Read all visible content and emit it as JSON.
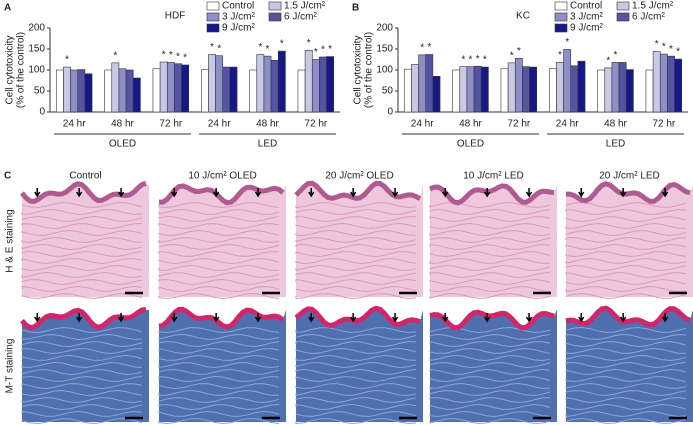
{
  "chart_data": [
    {
      "type": "bar",
      "panel": "A",
      "title": "HDF",
      "y_label": [
        "Cell cytotoxicity",
        "(% of the control)"
      ],
      "groups": [
        {
          "name": "OLED",
          "categories": [
            "24 hr",
            "48 hr",
            "72 hr"
          ]
        },
        {
          "name": "LED",
          "categories": [
            "24 hr",
            "48 hr",
            "72 hr"
          ]
        }
      ],
      "ylim": [
        0,
        200
      ],
      "yticks": [
        0,
        50,
        100,
        150,
        200
      ],
      "series": [
        {
          "name": "Control",
          "color": "#ffffff",
          "values": [
            100,
            100,
            103,
            101,
            100,
            100
          ]
        },
        {
          "name": "1.5 J/cm²",
          "color": "#c9c9e6",
          "values": [
            107,
            117,
            119,
            137,
            137,
            147
          ]
        },
        {
          "name": "3 J/cm²",
          "color": "#8e8ec9",
          "values": [
            100,
            103,
            118,
            134,
            133,
            125
          ]
        },
        {
          "name": "6 J/cm²",
          "color": "#5454a3",
          "values": [
            101,
            100,
            115,
            107,
            123,
            131
          ]
        },
        {
          "name": "9 J/cm²",
          "color": "#16188a",
          "values": [
            91,
            81,
            112,
            107,
            145,
            132
          ]
        }
      ],
      "annotations": [
        {
          "text": "*",
          "series": 1,
          "category": 0
        },
        {
          "text": "*",
          "series": 1,
          "category": 1
        },
        {
          "text": "*",
          "series": 1,
          "category": 2
        },
        {
          "text": "*",
          "series": 2,
          "category": 2
        },
        {
          "text": "*",
          "series": 3,
          "category": 2
        },
        {
          "text": "*",
          "series": 4,
          "category": 2
        },
        {
          "text": "*",
          "series": 1,
          "category": 3
        },
        {
          "text": "*",
          "series": 2,
          "category": 3
        },
        {
          "text": "*",
          "series": 1,
          "category": 4
        },
        {
          "text": "*",
          "series": 2,
          "category": 4
        },
        {
          "text": "*",
          "series": 4,
          "category": 4
        },
        {
          "text": "*",
          "series": 1,
          "category": 5
        },
        {
          "text": "*",
          "series": 2,
          "category": 5
        },
        {
          "text": "*",
          "series": 3,
          "category": 5
        },
        {
          "text": "*",
          "series": 4,
          "category": 5
        }
      ]
    },
    {
      "type": "bar",
      "panel": "B",
      "title": "KC",
      "y_label": [
        "Cell cytotoxicity",
        "(% of the control)"
      ],
      "groups": [
        {
          "name": "OLED",
          "categories": [
            "24 hr",
            "48 hr",
            "72 hr"
          ]
        },
        {
          "name": "LED",
          "categories": [
            "24 hr",
            "48 hr",
            "72 hr"
          ]
        }
      ],
      "ylim": [
        0,
        200
      ],
      "yticks": [
        0,
        50,
        100,
        150,
        200
      ],
      "series": [
        {
          "name": "Control",
          "color": "#ffffff",
          "values": [
            102,
            100,
            103,
            103,
            100,
            100
          ]
        },
        {
          "name": "1.5 J/cm²",
          "color": "#c9c9e6",
          "values": [
            113,
            108,
            117,
            118,
            105,
            144
          ]
        },
        {
          "name": "3 J/cm²",
          "color": "#8e8ec9",
          "values": [
            136,
            108,
            128,
            149,
            118,
            138
          ]
        },
        {
          "name": "6 J/cm²",
          "color": "#5454a3",
          "values": [
            137,
            109,
            108,
            110,
            118,
            133
          ]
        },
        {
          "name": "9 J/cm²",
          "color": "#16188a",
          "values": [
            85,
            107,
            107,
            121,
            101,
            126
          ]
        }
      ],
      "annotations": [
        {
          "text": "*",
          "series": 2,
          "category": 0
        },
        {
          "text": "*",
          "series": 3,
          "category": 0
        },
        {
          "text": "*",
          "series": 1,
          "category": 1
        },
        {
          "text": "*",
          "series": 2,
          "category": 1
        },
        {
          "text": "*",
          "series": 3,
          "category": 1
        },
        {
          "text": "*",
          "series": 4,
          "category": 1
        },
        {
          "text": "*",
          "series": 1,
          "category": 2
        },
        {
          "text": "*",
          "series": 2,
          "category": 2
        },
        {
          "text": "*",
          "series": 1,
          "category": 3
        },
        {
          "text": "*",
          "series": 2,
          "category": 3
        },
        {
          "text": "*",
          "series": 1,
          "category": 4
        },
        {
          "text": "*",
          "series": 2,
          "category": 4
        },
        {
          "text": "*",
          "series": 1,
          "category": 5
        },
        {
          "text": "*",
          "series": 2,
          "category": 5
        },
        {
          "text": "*",
          "series": 3,
          "category": 5
        },
        {
          "text": "*",
          "series": 4,
          "category": 5
        }
      ]
    }
  ],
  "panel_c": {
    "label": "C",
    "columns": [
      "Control",
      "10 J/cm² OLED",
      "20 J/cm² OLED",
      "10 J/cm² LED",
      "20 J/cm² LED"
    ],
    "rows": [
      "H & E staining",
      "M-T staining"
    ]
  }
}
